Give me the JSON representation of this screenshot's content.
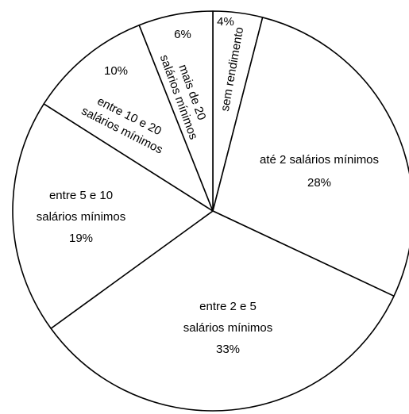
{
  "chart_data": {
    "type": "pie",
    "start": "12 o'clock",
    "direction": "clockwise",
    "colors": {
      "fill": "#ffffff",
      "stroke": "#000000",
      "text": "#000000"
    },
    "slices": [
      {
        "label_lines": [
          "sem rendimento"
        ],
        "percent_label": "4%",
        "value": 4
      },
      {
        "label_lines": [
          "até 2 salários mínimos"
        ],
        "percent_label": "28%",
        "value": 28
      },
      {
        "label_lines": [
          "entre 2 e 5",
          "salários mínimos"
        ],
        "percent_label": "33%",
        "value": 33
      },
      {
        "label_lines": [
          "entre 5 e 10",
          "salários mínimos"
        ],
        "percent_label": "19%",
        "value": 19
      },
      {
        "label_lines": [
          "entre 10 e 20",
          "salários mínimos"
        ],
        "percent_label": "10%",
        "value": 10
      },
      {
        "label_lines": [
          "mais de 20",
          "salários mínimos"
        ],
        "percent_label": "6%",
        "value": 6
      }
    ]
  }
}
